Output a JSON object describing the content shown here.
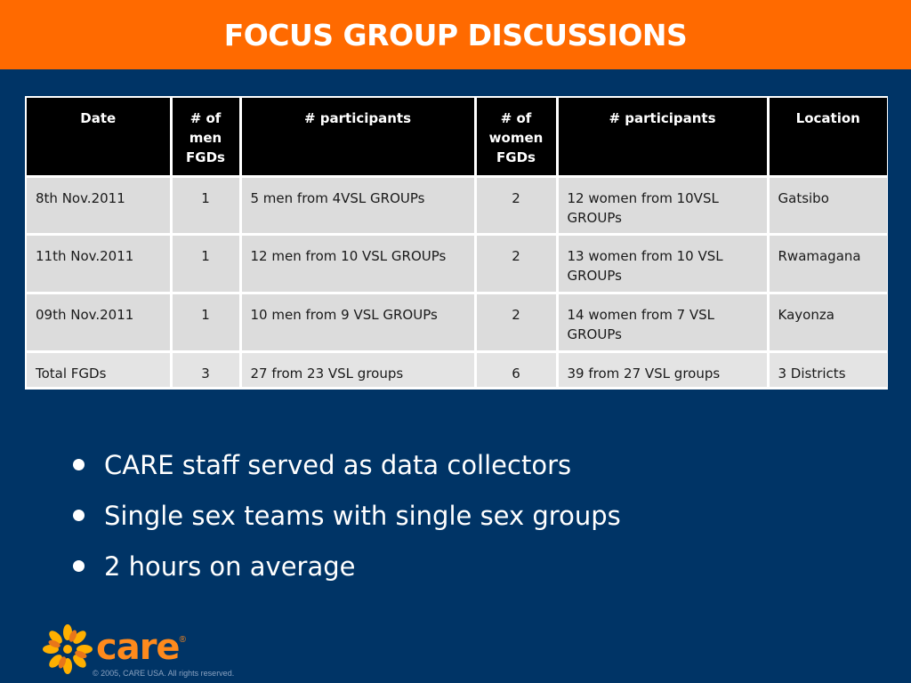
{
  "slide": {
    "title": "FOCUS GROUP DISCUSSIONS"
  },
  "table": {
    "headers": [
      "Date",
      "# of men FGDs",
      "# participants",
      "# of women FGDs",
      "# participants",
      "Location"
    ],
    "rows": [
      [
        "8th Nov.2011",
        "1",
        "5 men from 4VSL GROUPs",
        "2",
        "12 women from 10VSL GROUPs",
        "Gatsibo"
      ],
      [
        "11th Nov.2011",
        "1",
        "12 men from 10 VSL GROUPs",
        "2",
        "13 women from 10 VSL GROUPs",
        "Rwamagana"
      ],
      [
        "09th Nov.2011",
        "1",
        "10 men from 9 VSL GROUPs",
        "2",
        "14 women from 7 VSL GROUPs",
        "Kayonza"
      ],
      [
        "Total FGDs",
        "3",
        "27 from 23 VSL groups",
        "6",
        "39 from 27 VSL groups",
        "3 Districts"
      ]
    ]
  },
  "bullets": [
    "CARE staff served as data collectors",
    "Single sex teams with single sex groups",
    "2 hours on average"
  ],
  "footer": {
    "logo_text": "care",
    "logo_tm": "®",
    "copyright": "© 2005, CARE USA. All rights reserved."
  },
  "colors": {
    "title_bar": "#ff6a00",
    "background": "#003466",
    "logo": "#ff8a1c"
  }
}
